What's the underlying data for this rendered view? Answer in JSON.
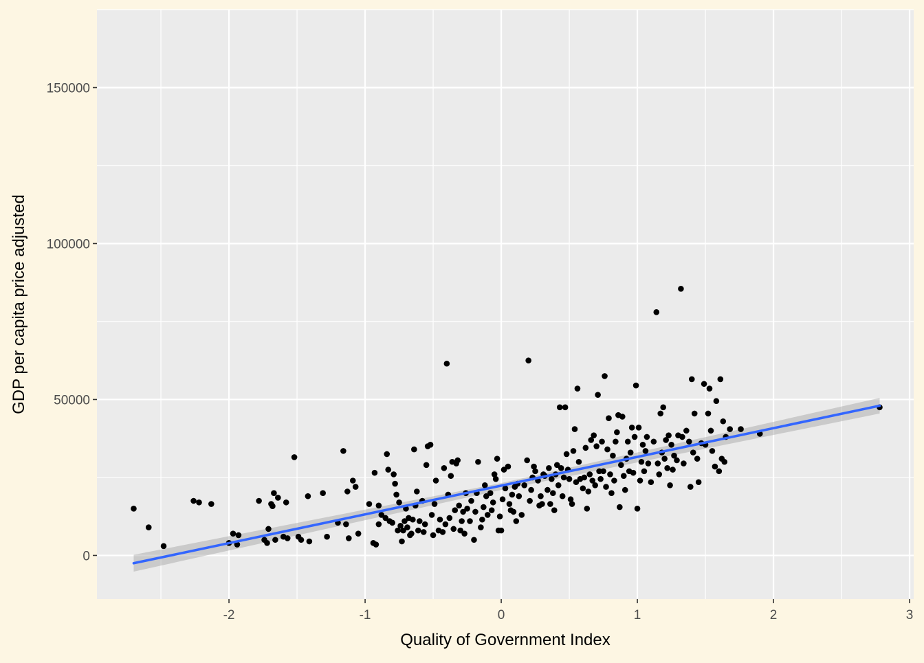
{
  "colors": {
    "background": "#fdf6e3",
    "panel": "#ebebeb",
    "grid_major": "#ffffff",
    "points": "#000000",
    "fit_line": "#3366ff",
    "ribbon": "#999999"
  },
  "chart_data": {
    "type": "scatter",
    "xlabel": "Quality of Government Index",
    "ylabel": "GDP per capita price adjusted",
    "xlim": [
      -2.97,
      3.03
    ],
    "ylim": [
      -14000,
      175000
    ],
    "x_ticks": [
      -2,
      -1,
      0,
      1,
      2,
      3
    ],
    "x_tick_labels": [
      "-2",
      "-1",
      "0",
      "1",
      "2",
      "3"
    ],
    "y_ticks": [
      0,
      50000,
      100000,
      150000
    ],
    "y_tick_labels": [
      "0",
      "50000",
      "100000",
      "150000"
    ],
    "grid": true,
    "smooth": {
      "method": "lm",
      "x": [
        -2.7,
        2.78
      ],
      "y": [
        -2500,
        48000
      ],
      "se_band": [
        [
          -2.7,
          -5200,
          200
        ],
        [
          0,
          21000,
          23200
        ],
        [
          2.78,
          45500,
          50500
        ]
      ]
    },
    "points": [
      [
        -2.7,
        15000
      ],
      [
        -2.59,
        9000
      ],
      [
        -2.48,
        3000
      ],
      [
        -2.26,
        17500
      ],
      [
        -2.22,
        17000
      ],
      [
        -2.13,
        16500
      ],
      [
        -2.0,
        4000
      ],
      [
        -1.97,
        7000
      ],
      [
        -1.94,
        3500
      ],
      [
        -1.93,
        6500
      ],
      [
        -1.78,
        17500
      ],
      [
        -1.74,
        5000
      ],
      [
        -1.72,
        4000
      ],
      [
        -1.71,
        8500
      ],
      [
        -1.69,
        16500
      ],
      [
        -1.68,
        15800
      ],
      [
        -1.67,
        20000
      ],
      [
        -1.66,
        5000
      ],
      [
        -1.64,
        18500
      ],
      [
        -1.6,
        6000
      ],
      [
        -1.58,
        17000
      ],
      [
        -1.57,
        5500
      ],
      [
        -1.52,
        31500
      ],
      [
        -1.49,
        6000
      ],
      [
        -1.47,
        5000
      ],
      [
        -1.42,
        19000
      ],
      [
        -1.41,
        4500
      ],
      [
        -1.31,
        20000
      ],
      [
        -1.28,
        6000
      ],
      [
        -1.2,
        10500
      ],
      [
        -1.16,
        33500
      ],
      [
        -1.14,
        10000
      ],
      [
        -1.13,
        20500
      ],
      [
        -1.12,
        5500
      ],
      [
        -1.09,
        24000
      ],
      [
        -1.07,
        22000
      ],
      [
        -1.05,
        7000
      ],
      [
        -0.97,
        16500
      ],
      [
        -0.94,
        4000
      ],
      [
        -0.93,
        26500
      ],
      [
        -0.92,
        3500
      ],
      [
        -0.9,
        16000
      ],
      [
        -0.9,
        10000
      ],
      [
        -0.88,
        13000
      ],
      [
        -0.85,
        12000
      ],
      [
        -0.84,
        32500
      ],
      [
        -0.83,
        27500
      ],
      [
        -0.82,
        11000
      ],
      [
        -0.8,
        10500
      ],
      [
        -0.79,
        26000
      ],
      [
        -0.78,
        23000
      ],
      [
        -0.77,
        19500
      ],
      [
        -0.76,
        8000
      ],
      [
        -0.75,
        17000
      ],
      [
        -0.74,
        9500
      ],
      [
        -0.73,
        4500
      ],
      [
        -0.72,
        8000
      ],
      [
        -0.71,
        11000
      ],
      [
        -0.7,
        15000
      ],
      [
        -0.69,
        9000
      ],
      [
        -0.68,
        12000
      ],
      [
        -0.67,
        6500
      ],
      [
        -0.66,
        7000
      ],
      [
        -0.65,
        11500
      ],
      [
        -0.64,
        34000
      ],
      [
        -0.63,
        16000
      ],
      [
        -0.62,
        20500
      ],
      [
        -0.61,
        8000
      ],
      [
        -0.6,
        11000
      ],
      [
        -0.58,
        17500
      ],
      [
        -0.57,
        7500
      ],
      [
        -0.56,
        10000
      ],
      [
        -0.55,
        29000
      ],
      [
        -0.54,
        35000
      ],
      [
        -0.52,
        35500
      ],
      [
        -0.51,
        13000
      ],
      [
        -0.5,
        6500
      ],
      [
        -0.49,
        16500
      ],
      [
        -0.48,
        24000
      ],
      [
        -0.46,
        8000
      ],
      [
        -0.45,
        11500
      ],
      [
        -0.43,
        7500
      ],
      [
        -0.42,
        28000
      ],
      [
        -0.41,
        10000
      ],
      [
        -0.4,
        61500
      ],
      [
        -0.39,
        19500
      ],
      [
        -0.38,
        12000
      ],
      [
        -0.37,
        25500
      ],
      [
        -0.36,
        30000
      ],
      [
        -0.35,
        8500
      ],
      [
        -0.34,
        14500
      ],
      [
        -0.33,
        29500
      ],
      [
        -0.32,
        30500
      ],
      [
        -0.31,
        16000
      ],
      [
        -0.3,
        8000
      ],
      [
        -0.29,
        11000
      ],
      [
        -0.28,
        14000
      ],
      [
        -0.27,
        7000
      ],
      [
        -0.26,
        20000
      ],
      [
        -0.25,
        15000
      ],
      [
        -0.23,
        11000
      ],
      [
        -0.22,
        17500
      ],
      [
        -0.2,
        5000
      ],
      [
        -0.19,
        14000
      ],
      [
        -0.18,
        20000
      ],
      [
        -0.17,
        30000
      ],
      [
        -0.15,
        9000
      ],
      [
        -0.14,
        11500
      ],
      [
        -0.13,
        15500
      ],
      [
        -0.12,
        22500
      ],
      [
        -0.11,
        19000
      ],
      [
        -0.1,
        13000
      ],
      [
        -0.08,
        20000
      ],
      [
        -0.07,
        14500
      ],
      [
        -0.06,
        17000
      ],
      [
        -0.05,
        26000
      ],
      [
        -0.04,
        24500
      ],
      [
        -0.03,
        31000
      ],
      [
        -0.02,
        8000
      ],
      [
        -0.01,
        12500
      ],
      [
        0.0,
        8000
      ],
      [
        0.01,
        18000
      ],
      [
        0.02,
        27500
      ],
      [
        0.03,
        21500
      ],
      [
        0.05,
        28500
      ],
      [
        0.06,
        16500
      ],
      [
        0.07,
        14500
      ],
      [
        0.08,
        19500
      ],
      [
        0.09,
        14000
      ],
      [
        0.1,
        22000
      ],
      [
        0.11,
        11000
      ],
      [
        0.12,
        23000
      ],
      [
        0.13,
        19000
      ],
      [
        0.15,
        13000
      ],
      [
        0.17,
        22500
      ],
      [
        0.19,
        30500
      ],
      [
        0.2,
        62500
      ],
      [
        0.21,
        17500
      ],
      [
        0.22,
        21000
      ],
      [
        0.23,
        25000
      ],
      [
        0.24,
        28500
      ],
      [
        0.25,
        27000
      ],
      [
        0.27,
        24000
      ],
      [
        0.28,
        16000
      ],
      [
        0.29,
        19000
      ],
      [
        0.3,
        16500
      ],
      [
        0.31,
        26000
      ],
      [
        0.32,
        25500
      ],
      [
        0.34,
        21000
      ],
      [
        0.35,
        28000
      ],
      [
        0.36,
        16500
      ],
      [
        0.37,
        24500
      ],
      [
        0.38,
        20000
      ],
      [
        0.39,
        14500
      ],
      [
        0.4,
        26000
      ],
      [
        0.41,
        29000
      ],
      [
        0.42,
        22500
      ],
      [
        0.43,
        47500
      ],
      [
        0.44,
        28000
      ],
      [
        0.45,
        19000
      ],
      [
        0.46,
        25000
      ],
      [
        0.47,
        47500
      ],
      [
        0.48,
        32500
      ],
      [
        0.49,
        27500
      ],
      [
        0.5,
        24500
      ],
      [
        0.51,
        18000
      ],
      [
        0.52,
        16500
      ],
      [
        0.53,
        33500
      ],
      [
        0.54,
        40500
      ],
      [
        0.55,
        23500
      ],
      [
        0.56,
        53500
      ],
      [
        0.57,
        30000
      ],
      [
        0.58,
        24500
      ],
      [
        0.6,
        21500
      ],
      [
        0.61,
        25000
      ],
      [
        0.62,
        34500
      ],
      [
        0.63,
        15000
      ],
      [
        0.64,
        20500
      ],
      [
        0.65,
        26000
      ],
      [
        0.66,
        37000
      ],
      [
        0.67,
        24000
      ],
      [
        0.68,
        38500
      ],
      [
        0.69,
        22500
      ],
      [
        0.7,
        35000
      ],
      [
        0.71,
        51500
      ],
      [
        0.72,
        27000
      ],
      [
        0.73,
        24500
      ],
      [
        0.74,
        36500
      ],
      [
        0.75,
        27000
      ],
      [
        0.76,
        57500
      ],
      [
        0.77,
        22000
      ],
      [
        0.78,
        34000
      ],
      [
        0.79,
        44000
      ],
      [
        0.8,
        26000
      ],
      [
        0.81,
        20000
      ],
      [
        0.82,
        32000
      ],
      [
        0.83,
        24000
      ],
      [
        0.84,
        36500
      ],
      [
        0.85,
        39500
      ],
      [
        0.86,
        45000
      ],
      [
        0.87,
        15500
      ],
      [
        0.88,
        29000
      ],
      [
        0.89,
        44500
      ],
      [
        0.9,
        25500
      ],
      [
        0.91,
        21000
      ],
      [
        0.92,
        31000
      ],
      [
        0.93,
        36500
      ],
      [
        0.94,
        27000
      ],
      [
        0.95,
        33000
      ],
      [
        0.96,
        41000
      ],
      [
        0.97,
        26500
      ],
      [
        0.98,
        38000
      ],
      [
        0.99,
        54500
      ],
      [
        1.0,
        15000
      ],
      [
        1.01,
        41000
      ],
      [
        1.02,
        24000
      ],
      [
        1.03,
        30000
      ],
      [
        1.04,
        35500
      ],
      [
        1.05,
        27000
      ],
      [
        1.06,
        33500
      ],
      [
        1.07,
        38000
      ],
      [
        1.08,
        29500
      ],
      [
        1.1,
        23500
      ],
      [
        1.12,
        36500
      ],
      [
        1.14,
        78000
      ],
      [
        1.15,
        29500
      ],
      [
        1.16,
        26000
      ],
      [
        1.17,
        45500
      ],
      [
        1.18,
        33000
      ],
      [
        1.19,
        47500
      ],
      [
        1.2,
        31000
      ],
      [
        1.21,
        37000
      ],
      [
        1.22,
        28000
      ],
      [
        1.23,
        38500
      ],
      [
        1.24,
        22500
      ],
      [
        1.25,
        35500
      ],
      [
        1.26,
        27500
      ],
      [
        1.27,
        32000
      ],
      [
        1.29,
        30500
      ],
      [
        1.3,
        38500
      ],
      [
        1.32,
        85500
      ],
      [
        1.33,
        38000
      ],
      [
        1.34,
        29500
      ],
      [
        1.36,
        40000
      ],
      [
        1.38,
        36500
      ],
      [
        1.39,
        22000
      ],
      [
        1.4,
        56500
      ],
      [
        1.41,
        33000
      ],
      [
        1.42,
        45500
      ],
      [
        1.44,
        31000
      ],
      [
        1.45,
        23500
      ],
      [
        1.47,
        36000
      ],
      [
        1.49,
        55000
      ],
      [
        1.5,
        35500
      ],
      [
        1.52,
        45500
      ],
      [
        1.53,
        53500
      ],
      [
        1.54,
        40000
      ],
      [
        1.55,
        33500
      ],
      [
        1.57,
        28500
      ],
      [
        1.58,
        49500
      ],
      [
        1.6,
        27000
      ],
      [
        1.61,
        56500
      ],
      [
        1.62,
        31000
      ],
      [
        1.63,
        43000
      ],
      [
        1.64,
        30000
      ],
      [
        1.65,
        38000
      ],
      [
        1.68,
        40500
      ],
      [
        1.76,
        40500
      ],
      [
        1.9,
        39000
      ],
      [
        2.78,
        47500
      ]
    ]
  }
}
